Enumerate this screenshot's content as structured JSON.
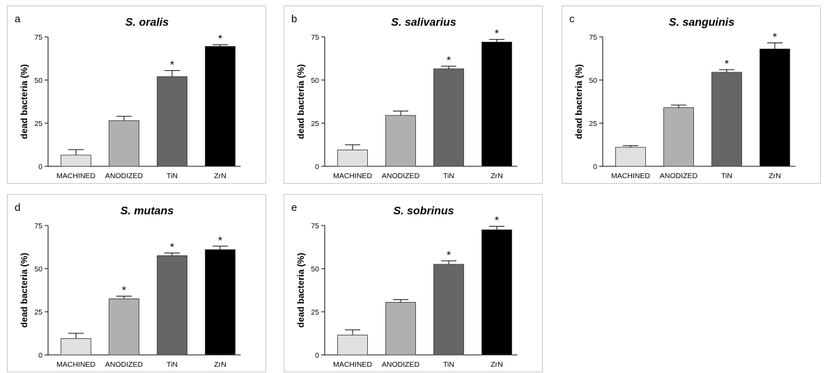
{
  "chart_data": [
    {
      "panel_letter": "a",
      "type": "bar",
      "title": "S. oralis",
      "xlabel": "",
      "ylabel": "dead bacteria (%)",
      "ylim": [
        0,
        75
      ],
      "yticks": [
        0,
        25,
        50,
        75
      ],
      "categories": [
        "MACHINED",
        "ANODIZED",
        "TiN",
        "ZrN"
      ],
      "values": [
        6.5,
        26.5,
        52,
        69.5
      ],
      "errors": [
        3.2,
        2.5,
        3.5,
        1.0
      ],
      "significant": [
        false,
        false,
        true,
        true
      ],
      "significance_marker": "*",
      "colors": [
        "#e0e0e0",
        "#b0b0b0",
        "#666666",
        "#000000"
      ]
    },
    {
      "panel_letter": "b",
      "type": "bar",
      "title": "S. salivarius",
      "xlabel": "",
      "ylabel": "dead bacteria (%)",
      "ylim": [
        0,
        75
      ],
      "yticks": [
        0,
        25,
        50,
        75
      ],
      "categories": [
        "MACHINED",
        "ANODIZED",
        "TiN",
        "ZrN"
      ],
      "values": [
        9.5,
        29.5,
        56.5,
        72
      ],
      "errors": [
        3.0,
        2.5,
        1.5,
        1.5
      ],
      "significant": [
        false,
        false,
        true,
        true
      ],
      "significance_marker": "*",
      "colors": [
        "#e0e0e0",
        "#b0b0b0",
        "#666666",
        "#000000"
      ]
    },
    {
      "panel_letter": "c",
      "type": "bar",
      "title": "S. sanguinis",
      "xlabel": "",
      "ylabel": "dead bacteria (%)",
      "ylim": [
        0,
        75
      ],
      "yticks": [
        0,
        25,
        50,
        75
      ],
      "categories": [
        "MACHINED",
        "ANODIZED",
        "TiN",
        "ZrN"
      ],
      "values": [
        11,
        34,
        54.5,
        68
      ],
      "errors": [
        1.0,
        1.5,
        1.5,
        3.5
      ],
      "significant": [
        false,
        false,
        true,
        true
      ],
      "significance_marker": "*",
      "colors": [
        "#e0e0e0",
        "#b0b0b0",
        "#666666",
        "#000000"
      ]
    },
    {
      "panel_letter": "d",
      "type": "bar",
      "title": "S. mutans",
      "xlabel": "",
      "ylabel": "dead bacteria (%)",
      "ylim": [
        0,
        75
      ],
      "yticks": [
        0,
        25,
        50,
        75
      ],
      "categories": [
        "MACHINED",
        "ANODIZED",
        "TiN",
        "ZrN"
      ],
      "values": [
        9.5,
        32.5,
        57.5,
        61
      ],
      "errors": [
        3.0,
        1.5,
        1.5,
        2.0
      ],
      "significant": [
        false,
        true,
        true,
        true
      ],
      "significance_marker": "*",
      "colors": [
        "#e0e0e0",
        "#b0b0b0",
        "#666666",
        "#000000"
      ]
    },
    {
      "panel_letter": "e",
      "type": "bar",
      "title": "S. sobrinus",
      "xlabel": "",
      "ylabel": "dead bacteria (%)",
      "ylim": [
        0,
        75
      ],
      "yticks": [
        0,
        25,
        50,
        75
      ],
      "categories": [
        "MACHINED",
        "ANODIZED",
        "TiN",
        "ZrN"
      ],
      "values": [
        11.5,
        30.5,
        52.5,
        72.5
      ],
      "errors": [
        3.0,
        1.5,
        2.0,
        2.0
      ],
      "significant": [
        false,
        false,
        true,
        true
      ],
      "significance_marker": "*",
      "colors": [
        "#e0e0e0",
        "#b0b0b0",
        "#666666",
        "#000000"
      ]
    }
  ]
}
